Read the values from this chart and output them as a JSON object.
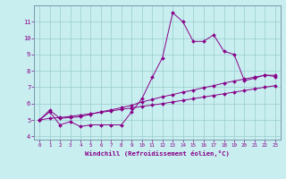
{
  "xlabel": "Windchill (Refroidissement éolien,°C)",
  "background_color": "#c8eef0",
  "line_color": "#880088",
  "grid_color": "#99cccc",
  "spine_color": "#7799aa",
  "xlim": [
    -0.5,
    23.5
  ],
  "ylim": [
    3.8,
    12.0
  ],
  "yticks": [
    4,
    5,
    6,
    7,
    8,
    9,
    10,
    11
  ],
  "xticks": [
    0,
    1,
    2,
    3,
    4,
    5,
    6,
    7,
    8,
    9,
    10,
    11,
    12,
    13,
    14,
    15,
    16,
    17,
    18,
    19,
    20,
    21,
    22,
    23
  ],
  "series1_x": [
    0,
    1,
    2,
    3,
    4,
    5,
    6,
    7,
    8,
    9,
    10,
    11,
    12,
    13,
    14,
    15,
    16,
    17,
    18,
    19,
    20,
    21,
    22,
    23
  ],
  "series1_y": [
    5.0,
    5.5,
    4.7,
    4.9,
    4.6,
    4.7,
    4.7,
    4.7,
    4.7,
    5.5,
    6.3,
    7.6,
    8.8,
    11.55,
    11.0,
    9.8,
    9.8,
    10.2,
    9.2,
    9.0,
    7.4,
    7.55,
    7.75,
    7.65
  ],
  "series2_x": [
    0,
    1,
    2,
    3,
    4,
    5,
    6,
    7,
    8,
    9,
    10,
    11,
    12,
    13,
    14,
    15,
    16,
    17,
    18,
    19,
    20,
    21,
    22,
    23
  ],
  "series2_y": [
    5.0,
    5.6,
    5.1,
    5.15,
    5.2,
    5.35,
    5.5,
    5.62,
    5.75,
    5.9,
    6.1,
    6.25,
    6.42,
    6.55,
    6.7,
    6.82,
    6.97,
    7.1,
    7.25,
    7.38,
    7.5,
    7.62,
    7.73,
    7.73
  ],
  "series3_x": [
    0,
    1,
    2,
    3,
    4,
    5,
    6,
    7,
    8,
    9,
    10,
    11,
    12,
    13,
    14,
    15,
    16,
    17,
    18,
    19,
    20,
    21,
    22,
    23
  ],
  "series3_y": [
    5.0,
    5.1,
    5.15,
    5.22,
    5.3,
    5.38,
    5.47,
    5.55,
    5.65,
    5.73,
    5.83,
    5.91,
    6.0,
    6.1,
    6.2,
    6.3,
    6.4,
    6.5,
    6.6,
    6.7,
    6.8,
    6.9,
    7.0,
    7.1
  ]
}
